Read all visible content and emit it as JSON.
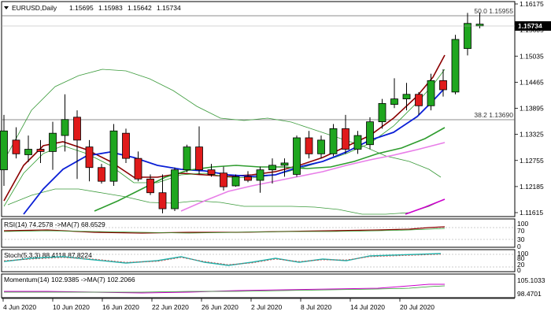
{
  "header": {
    "symbol": "EURUSD,Daily",
    "open": "1.15695",
    "high": "1.15983",
    "low": "1.15642",
    "close": "1.15734"
  },
  "main_axis": {
    "ticks": [
      "1.16175",
      "1.15605",
      "1.15035",
      "1.14465",
      "1.13895",
      "1.13325",
      "1.12755",
      "1.12185",
      "1.11615"
    ],
    "current_price": "1.15734"
  },
  "fib_levels": [
    {
      "label": "50.0 1.15955",
      "value": 1.15955
    },
    {
      "label": "38.2 1.13690",
      "value": 1.1369
    }
  ],
  "x_axis": {
    "labels": [
      "4 Jun 2020",
      "10 Jun 2020",
      "16 Jun 2020",
      "22 Jun 2020",
      "26 Jun 2020",
      "2 Jul 2020",
      "8 Jul 2020",
      "14 Jul 2020",
      "20 Jul 2020"
    ]
  },
  "indicators": {
    "rsi": {
      "label": "RSI(14) 74.2578 ->MA(7) 68.6529",
      "ticks": [
        "100",
        "70",
        "30",
        "0"
      ]
    },
    "stoch": {
      "label": "Stoch(5,3,3) 88.4118 87.8224",
      "ticks": [
        "100",
        "80",
        "20",
        "0"
      ]
    },
    "momentum": {
      "label": "Momentum(14) 102.9385 ->MA(7) 102.2066",
      "ticks": [
        "105.1033",
        "98.4701"
      ]
    }
  },
  "colors": {
    "bull": "#1fa61f",
    "bear": "#e01b1b",
    "ma_fast": "#8b0000",
    "ma_blue": "#0a1fd6",
    "ma_green": "#2e9c2e",
    "ma_pink": "#e87ee8",
    "ma_magenta": "#cc00cc",
    "bollinger": "#3a9a3a"
  },
  "chart_data": {
    "type": "candlestick",
    "dates": [
      "4 Jun 2020",
      "10 Jun 2020",
      "16 Jun 2020",
      "22 Jun 2020",
      "26 Jun 2020",
      "2 Jul 2020",
      "8 Jul 2020",
      "14 Jul 2020",
      "20 Jul 2020"
    ],
    "candles": [
      {
        "o": 1.1255,
        "h": 1.1375,
        "l": 1.122,
        "c": 1.134
      },
      {
        "o": 1.132,
        "h": 1.1348,
        "l": 1.128,
        "c": 1.129
      },
      {
        "o": 1.1288,
        "h": 1.133,
        "l": 1.1272,
        "c": 1.13
      },
      {
        "o": 1.13,
        "h": 1.132,
        "l": 1.127,
        "c": 1.1295
      },
      {
        "o": 1.1295,
        "h": 1.136,
        "l": 1.1255,
        "c": 1.1335
      },
      {
        "o": 1.133,
        "h": 1.142,
        "l": 1.1295,
        "c": 1.1365
      },
      {
        "o": 1.137,
        "h": 1.1385,
        "l": 1.1235,
        "c": 1.132
      },
      {
        "o": 1.1305,
        "h": 1.132,
        "l": 1.123,
        "c": 1.126
      },
      {
        "o": 1.126,
        "h": 1.1268,
        "l": 1.1225,
        "c": 1.123
      },
      {
        "o": 1.123,
        "h": 1.1355,
        "l": 1.122,
        "c": 1.134
      },
      {
        "o": 1.1335,
        "h": 1.1345,
        "l": 1.127,
        "c": 1.128
      },
      {
        "o": 1.128,
        "h": 1.1295,
        "l": 1.123,
        "c": 1.1235
      },
      {
        "o": 1.1235,
        "h": 1.1245,
        "l": 1.12,
        "c": 1.1205
      },
      {
        "o": 1.1205,
        "h": 1.1245,
        "l": 1.116,
        "c": 1.117
      },
      {
        "o": 1.117,
        "h": 1.126,
        "l": 1.1165,
        "c": 1.1255
      },
      {
        "o": 1.1255,
        "h": 1.131,
        "l": 1.125,
        "c": 1.1305
      },
      {
        "o": 1.1305,
        "h": 1.135,
        "l": 1.1245,
        "c": 1.1255
      },
      {
        "o": 1.1255,
        "h": 1.1268,
        "l": 1.124,
        "c": 1.1245
      },
      {
        "o": 1.1248,
        "h": 1.1262,
        "l": 1.121,
        "c": 1.1218
      },
      {
        "o": 1.122,
        "h": 1.1245,
        "l": 1.1218,
        "c": 1.124
      },
      {
        "o": 1.124,
        "h": 1.1252,
        "l": 1.1228,
        "c": 1.1232
      },
      {
        "o": 1.1232,
        "h": 1.1262,
        "l": 1.1205,
        "c": 1.1255
      },
      {
        "o": 1.1255,
        "h": 1.128,
        "l": 1.1225,
        "c": 1.1265
      },
      {
        "o": 1.1265,
        "h": 1.128,
        "l": 1.124,
        "c": 1.127
      },
      {
        "o": 1.1245,
        "h": 1.133,
        "l": 1.124,
        "c": 1.1325
      },
      {
        "o": 1.1325,
        "h": 1.134,
        "l": 1.128,
        "c": 1.129
      },
      {
        "o": 1.129,
        "h": 1.133,
        "l": 1.128,
        "c": 1.132
      },
      {
        "o": 1.129,
        "h": 1.1355,
        "l": 1.1285,
        "c": 1.1345
      },
      {
        "o": 1.1345,
        "h": 1.1375,
        "l": 1.129,
        "c": 1.13
      },
      {
        "o": 1.13,
        "h": 1.134,
        "l": 1.129,
        "c": 1.133
      },
      {
        "o": 1.131,
        "h": 1.137,
        "l": 1.13,
        "c": 1.136
      },
      {
        "o": 1.136,
        "h": 1.141,
        "l": 1.1345,
        "c": 1.14
      },
      {
        "o": 1.1398,
        "h": 1.1455,
        "l": 1.139,
        "c": 1.141
      },
      {
        "o": 1.141,
        "h": 1.1445,
        "l": 1.1385,
        "c": 1.142
      },
      {
        "o": 1.142,
        "h": 1.1425,
        "l": 1.1375,
        "c": 1.1395
      },
      {
        "o": 1.1395,
        "h": 1.1465,
        "l": 1.1385,
        "c": 1.145
      },
      {
        "o": 1.145,
        "h": 1.1475,
        "l": 1.1415,
        "c": 1.143
      },
      {
        "o": 1.1425,
        "h": 1.155,
        "l": 1.142,
        "c": 1.154
      },
      {
        "o": 1.152,
        "h": 1.1598,
        "l": 1.1505,
        "c": 1.1575
      },
      {
        "o": 1.15695,
        "h": 1.15983,
        "l": 1.15642,
        "c": 1.15734
      }
    ]
  }
}
